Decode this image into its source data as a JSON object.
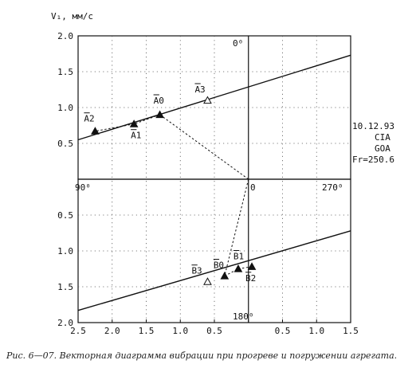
{
  "caption": "Рис. 6—07. Векторная диаграмма вибрации при прогреве и погружении агрегата.",
  "chart_data": {
    "type": "scatter",
    "y_axis_label": "V₁, мм/с",
    "upper": {
      "x_ticks": [
        "2.5",
        "2.0",
        "1.5",
        "1.0",
        "0.5",
        "0",
        "0.5",
        "1.0",
        "1.5"
      ],
      "y_ticks": [
        "2.0",
        "1.5",
        "1.0",
        "0.5"
      ],
      "angle_top": "0⁰",
      "angle_left": "90⁰",
      "angle_right": "270⁰",
      "center_label": "0",
      "points": [
        {
          "label": "A0",
          "x": -1.3,
          "y": 0.9,
          "marker": "filled"
        },
        {
          "label": "A1",
          "x": -1.68,
          "y": 0.77,
          "marker": "filled"
        },
        {
          "label": "A2",
          "x": -2.25,
          "y": 0.67,
          "marker": "filled"
        },
        {
          "label": "A3",
          "x": -0.6,
          "y": 1.1,
          "marker": "open"
        }
      ],
      "line": [
        {
          "x": -2.5,
          "y": 0.55
        },
        {
          "x": 1.5,
          "y": 1.73
        }
      ]
    },
    "lower": {
      "x_ticks": [
        "2.5",
        "2.0",
        "1.5",
        "1.0",
        "0.5",
        "0",
        "0.5",
        "1.0",
        "1.5"
      ],
      "y_ticks": [
        "0.5",
        "1.0",
        "1.5",
        "2.0"
      ],
      "angle_bottom": "180⁰",
      "points": [
        {
          "label": "B0",
          "x": -0.35,
          "y": 1.35,
          "marker": "filled"
        },
        {
          "label": "B1",
          "x": -0.15,
          "y": 1.25,
          "marker": "filled"
        },
        {
          "label": "B2",
          "x": 0.05,
          "y": 1.22,
          "marker": "filled"
        },
        {
          "label": "B3",
          "x": -0.6,
          "y": 1.43,
          "marker": "open"
        }
      ],
      "line": [
        {
          "x": -2.5,
          "y": 1.83
        },
        {
          "x": 1.5,
          "y": 0.72
        }
      ]
    },
    "annotation": [
      "10.12.93",
      "CIA",
      "GOA",
      "Fr=250.6"
    ]
  }
}
